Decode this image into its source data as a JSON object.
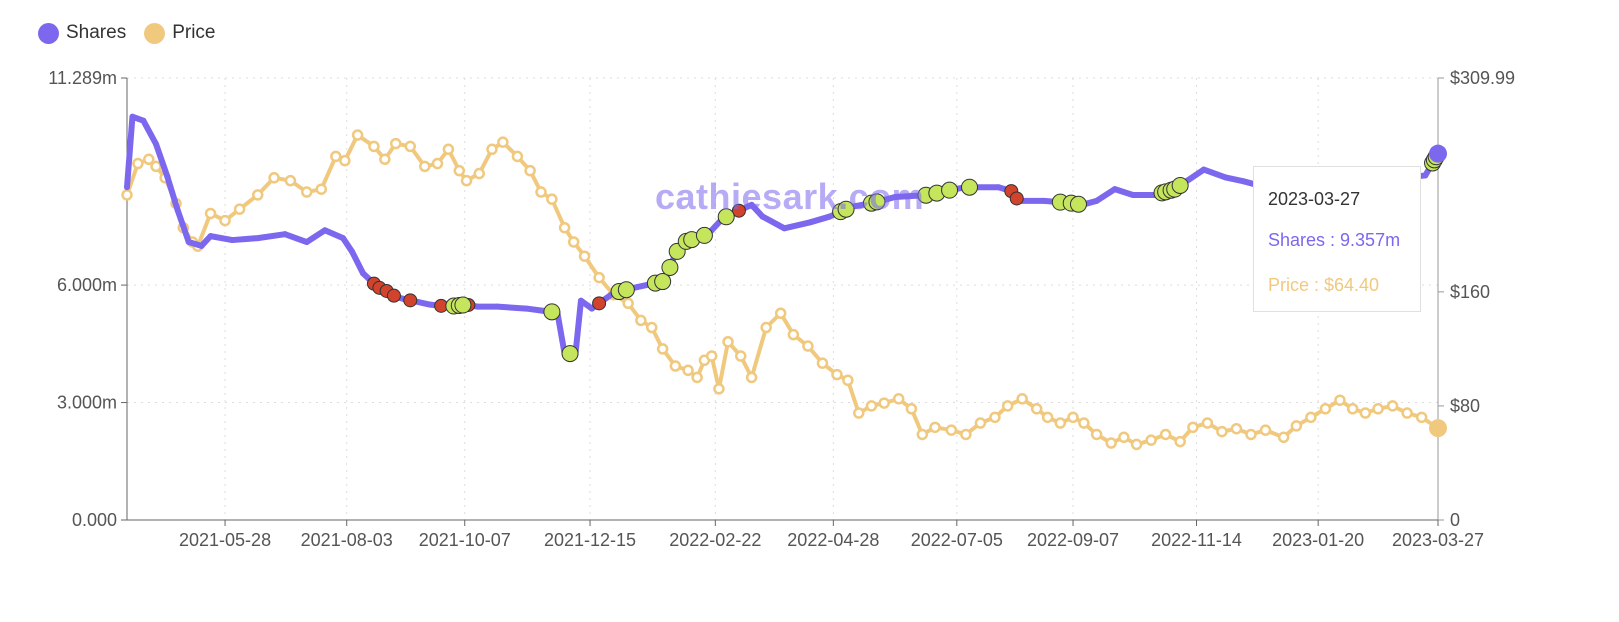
{
  "legend": [
    {
      "label": "Shares",
      "color": "#7b68ee"
    },
    {
      "label": "Price",
      "color": "#f0c97e"
    }
  ],
  "watermark": "cathiesark.com",
  "tooltip": {
    "date": "2023-03-27",
    "shares": "Shares : 9.357m",
    "price": "Price : $64.40"
  },
  "chart_data": {
    "type": "line",
    "x_axis": {
      "type": "date",
      "range": [
        "2021-04-04",
        "2023-03-27"
      ],
      "tick_labels": [
        "2021-05-28",
        "2021-08-03",
        "2021-10-07",
        "2021-12-15",
        "2022-02-22",
        "2022-04-28",
        "2022-07-05",
        "2022-09-07",
        "2022-11-14",
        "2023-01-20",
        "2023-03-27"
      ]
    },
    "y_left": {
      "range": [
        0,
        11.289
      ],
      "unit": "m",
      "ticks": [
        {
          "value": 0,
          "label": "0.000"
        },
        {
          "value": 3,
          "label": "3.000m"
        },
        {
          "value": 6,
          "label": "6.000m"
        },
        {
          "value": 11.289,
          "label": "11.289m"
        }
      ]
    },
    "y_right": {
      "range": [
        0,
        309.99
      ],
      "ticks": [
        {
          "value": 0,
          "label": "0"
        },
        {
          "value": 80,
          "label": "$80"
        },
        {
          "value": 160,
          "label": "$160"
        },
        {
          "value": 309.99,
          "label": "$309.99"
        }
      ]
    },
    "grid": true,
    "legend_position": "top-left",
    "series": [
      {
        "name": "Shares",
        "axis": "left",
        "color": "#7b68ee",
        "points": [
          [
            "2021-04-04",
            8.5
          ],
          [
            "2021-04-07",
            10.3
          ],
          [
            "2021-04-13",
            10.2
          ],
          [
            "2021-04-20",
            9.6
          ],
          [
            "2021-04-26",
            8.8
          ],
          [
            "2021-05-02",
            7.9
          ],
          [
            "2021-05-08",
            7.1
          ],
          [
            "2021-05-15",
            7.0
          ],
          [
            "2021-05-20",
            7.25
          ],
          [
            "2021-06-01",
            7.15
          ],
          [
            "2021-06-15",
            7.2
          ],
          [
            "2021-06-30",
            7.3
          ],
          [
            "2021-07-12",
            7.1
          ],
          [
            "2021-07-22",
            7.4
          ],
          [
            "2021-08-01",
            7.2
          ],
          [
            "2021-08-06",
            6.85
          ],
          [
            "2021-08-12",
            6.3
          ],
          [
            "2021-08-20",
            5.95
          ],
          [
            "2021-08-25",
            5.85
          ],
          [
            "2021-08-30",
            5.7
          ],
          [
            "2021-09-03",
            5.65
          ],
          [
            "2021-09-08",
            5.6
          ],
          [
            "2021-09-18",
            5.5
          ],
          [
            "2021-09-28",
            5.45
          ],
          [
            "2021-10-08",
            5.5
          ],
          [
            "2021-10-14",
            5.45
          ],
          [
            "2021-10-25",
            5.45
          ],
          [
            "2021-11-10",
            5.4
          ],
          [
            "2021-11-18",
            5.35
          ],
          [
            "2021-11-27",
            5.3
          ],
          [
            "2021-12-01",
            4.25
          ],
          [
            "2021-12-07",
            4.25
          ],
          [
            "2021-12-10",
            5.6
          ],
          [
            "2021-12-16",
            5.4
          ],
          [
            "2021-12-22",
            5.6
          ],
          [
            "2021-12-28",
            5.8
          ],
          [
            "2022-01-10",
            5.95
          ],
          [
            "2022-01-25",
            6.1
          ],
          [
            "2022-01-31",
            6.8
          ],
          [
            "2022-02-05",
            7.1
          ],
          [
            "2022-02-18",
            7.3
          ],
          [
            "2022-02-26",
            7.7
          ],
          [
            "2022-03-07",
            7.9
          ],
          [
            "2022-03-14",
            8.05
          ],
          [
            "2022-03-20",
            7.75
          ],
          [
            "2022-04-01",
            7.45
          ],
          [
            "2022-04-15",
            7.6
          ],
          [
            "2022-04-26",
            7.75
          ],
          [
            "2022-05-08",
            8.0
          ],
          [
            "2022-05-20",
            8.1
          ],
          [
            "2022-06-01",
            8.25
          ],
          [
            "2022-06-20",
            8.3
          ],
          [
            "2022-06-28",
            8.4
          ],
          [
            "2022-07-10",
            8.5
          ],
          [
            "2022-07-28",
            8.5
          ],
          [
            "2022-08-04",
            8.4
          ],
          [
            "2022-08-08",
            8.15
          ],
          [
            "2022-08-22",
            8.15
          ],
          [
            "2022-09-05",
            8.1
          ],
          [
            "2022-09-12",
            8.05
          ],
          [
            "2022-09-20",
            8.15
          ],
          [
            "2022-09-30",
            8.45
          ],
          [
            "2022-10-10",
            8.3
          ],
          [
            "2022-10-22",
            8.3
          ],
          [
            "2022-11-02",
            8.45
          ],
          [
            "2022-11-18",
            8.95
          ],
          [
            "2022-11-30",
            8.75
          ],
          [
            "2022-12-10",
            8.65
          ],
          [
            "2022-12-18",
            8.55
          ],
          [
            "2023-01-01",
            8.7
          ],
          [
            "2023-01-15",
            8.75
          ],
          [
            "2023-02-01",
            8.7
          ],
          [
            "2023-02-20",
            8.72
          ],
          [
            "2023-03-10",
            8.75
          ],
          [
            "2023-03-20",
            8.8
          ],
          [
            "2023-03-27",
            9.357
          ]
        ]
      },
      {
        "name": "Price",
        "axis": "right",
        "color": "#f0c97e",
        "points": [
          [
            "2021-04-04",
            228
          ],
          [
            "2021-04-10",
            250
          ],
          [
            "2021-04-16",
            253
          ],
          [
            "2021-04-20",
            248
          ],
          [
            "2021-04-25",
            240
          ],
          [
            "2021-05-01",
            222
          ],
          [
            "2021-05-05",
            205
          ],
          [
            "2021-05-10",
            195
          ],
          [
            "2021-05-13",
            192
          ],
          [
            "2021-05-20",
            215
          ],
          [
            "2021-05-28",
            210
          ],
          [
            "2021-06-05",
            218
          ],
          [
            "2021-06-15",
            228
          ],
          [
            "2021-06-24",
            240
          ],
          [
            "2021-07-03",
            238
          ],
          [
            "2021-07-12",
            230
          ],
          [
            "2021-07-20",
            232
          ],
          [
            "2021-07-28",
            255
          ],
          [
            "2021-08-02",
            252
          ],
          [
            "2021-08-09",
            270
          ],
          [
            "2021-08-18",
            262
          ],
          [
            "2021-08-24",
            253
          ],
          [
            "2021-08-30",
            264
          ],
          [
            "2021-09-07",
            262
          ],
          [
            "2021-09-15",
            248
          ],
          [
            "2021-09-22",
            250
          ],
          [
            "2021-09-28",
            260
          ],
          [
            "2021-10-04",
            245
          ],
          [
            "2021-10-08",
            238
          ],
          [
            "2021-10-15",
            243
          ],
          [
            "2021-10-22",
            260
          ],
          [
            "2021-10-28",
            265
          ],
          [
            "2021-11-05",
            255
          ],
          [
            "2021-11-12",
            245
          ],
          [
            "2021-11-18",
            230
          ],
          [
            "2021-11-24",
            225
          ],
          [
            "2021-12-01",
            205
          ],
          [
            "2021-12-06",
            195
          ],
          [
            "2021-12-12",
            185
          ],
          [
            "2021-12-20",
            170
          ],
          [
            "2021-12-28",
            158
          ],
          [
            "2022-01-05",
            152
          ],
          [
            "2022-01-12",
            140
          ],
          [
            "2022-01-18",
            135
          ],
          [
            "2022-01-24",
            120
          ],
          [
            "2022-01-31",
            108
          ],
          [
            "2022-02-07",
            105
          ],
          [
            "2022-02-12",
            100
          ],
          [
            "2022-02-16",
            112
          ],
          [
            "2022-02-20",
            115
          ],
          [
            "2022-02-24",
            92
          ],
          [
            "2022-03-01",
            125
          ],
          [
            "2022-03-08",
            115
          ],
          [
            "2022-03-14",
            100
          ],
          [
            "2022-03-22",
            135
          ],
          [
            "2022-03-30",
            145
          ],
          [
            "2022-04-06",
            130
          ],
          [
            "2022-04-14",
            122
          ],
          [
            "2022-04-22",
            110
          ],
          [
            "2022-04-30",
            102
          ],
          [
            "2022-05-06",
            98
          ],
          [
            "2022-05-12",
            75
          ],
          [
            "2022-05-19",
            80
          ],
          [
            "2022-05-26",
            82
          ],
          [
            "2022-06-03",
            85
          ],
          [
            "2022-06-10",
            78
          ],
          [
            "2022-06-16",
            60
          ],
          [
            "2022-06-23",
            65
          ],
          [
            "2022-07-02",
            63
          ],
          [
            "2022-07-10",
            60
          ],
          [
            "2022-07-18",
            68
          ],
          [
            "2022-07-26",
            72
          ],
          [
            "2022-08-02",
            80
          ],
          [
            "2022-08-10",
            85
          ],
          [
            "2022-08-18",
            78
          ],
          [
            "2022-08-24",
            72
          ],
          [
            "2022-08-31",
            68
          ],
          [
            "2022-09-07",
            72
          ],
          [
            "2022-09-13",
            68
          ],
          [
            "2022-09-20",
            60
          ],
          [
            "2022-09-28",
            54
          ],
          [
            "2022-10-05",
            58
          ],
          [
            "2022-10-12",
            53
          ],
          [
            "2022-10-20",
            56
          ],
          [
            "2022-10-28",
            60
          ],
          [
            "2022-11-05",
            55
          ],
          [
            "2022-11-12",
            65
          ],
          [
            "2022-11-20",
            68
          ],
          [
            "2022-11-28",
            62
          ],
          [
            "2022-12-06",
            64
          ],
          [
            "2022-12-14",
            60
          ],
          [
            "2022-12-22",
            63
          ],
          [
            "2023-01-01",
            58
          ],
          [
            "2023-01-08",
            66
          ],
          [
            "2023-01-16",
            72
          ],
          [
            "2023-01-24",
            78
          ],
          [
            "2023-02-01",
            84
          ],
          [
            "2023-02-08",
            78
          ],
          [
            "2023-02-15",
            75
          ],
          [
            "2023-02-22",
            78
          ],
          [
            "2023-03-02",
            80
          ],
          [
            "2023-03-10",
            75
          ],
          [
            "2023-03-18",
            72
          ],
          [
            "2023-03-27",
            64.4
          ]
        ]
      }
    ],
    "markers": {
      "buy_color": "#c5e55c",
      "sell_color": "#d1432c",
      "buy_dates": [
        "2021-10-01",
        "2021-10-04",
        "2021-10-06",
        "2021-11-24",
        "2021-12-04",
        "2021-12-31",
        "2022-01-04",
        "2022-01-20",
        "2022-01-24",
        "2022-01-28",
        "2022-02-01",
        "2022-02-06",
        "2022-02-09",
        "2022-02-16",
        "2022-02-28",
        "2022-05-02",
        "2022-05-05",
        "2022-05-19",
        "2022-05-22",
        "2022-06-18",
        "2022-06-24",
        "2022-07-01",
        "2022-07-12",
        "2022-08-31",
        "2022-09-06",
        "2022-09-10",
        "2022-10-26",
        "2022-10-28",
        "2022-10-31",
        "2022-11-02",
        "2022-11-05",
        "2023-03-24",
        "2023-03-25",
        "2023-03-26"
      ],
      "sell_dates": [
        "2021-08-18",
        "2021-08-21",
        "2021-08-25",
        "2021-08-29",
        "2021-09-07",
        "2021-09-24",
        "2021-10-09",
        "2021-12-20",
        "2022-03-07",
        "2022-08-04",
        "2022-08-07"
      ]
    }
  }
}
